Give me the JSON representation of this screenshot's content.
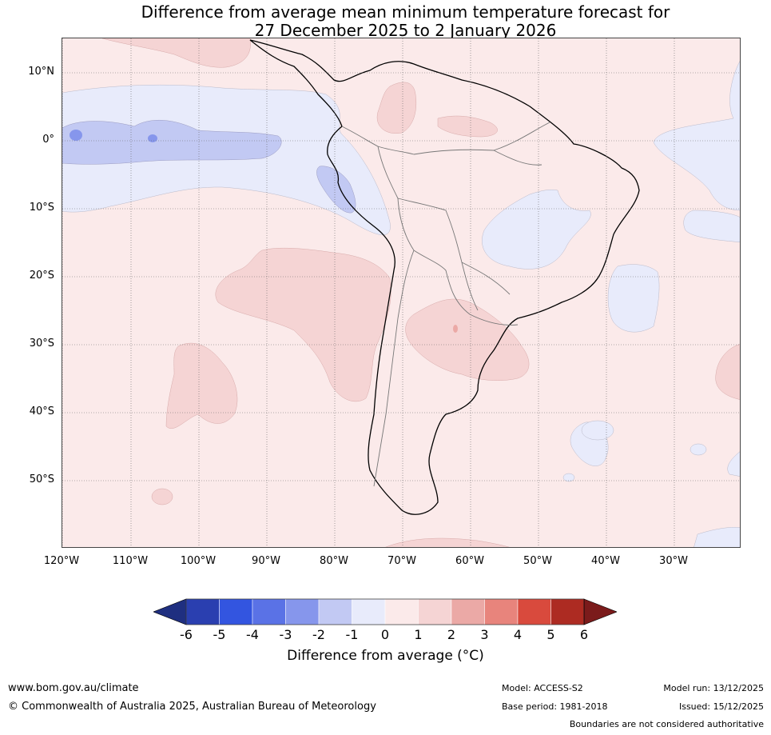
{
  "title": {
    "line1": "Difference from average mean minimum temperature forecast for",
    "line2": "27 December 2025 to 2 January 2026"
  },
  "latitude_labels": [
    "10°N",
    "0°",
    "10°S",
    "20°S",
    "30°S",
    "40°S",
    "50°S"
  ],
  "longitude_labels": [
    "120°W",
    "110°W",
    "100°W",
    "90°W",
    "80°W",
    "70°W",
    "60°W",
    "50°W",
    "40°W",
    "30°W"
  ],
  "colorbar": {
    "ticks": [
      "-6",
      "-5",
      "-4",
      "-3",
      "-2",
      "-1",
      "0",
      "1",
      "2",
      "3",
      "4",
      "5",
      "6"
    ],
    "colors": [
      "#1f2f80",
      "#2a3fb0",
      "#3355e0",
      "#5a72e6",
      "#8696ec",
      "#c2c9f3",
      "#e8ebfb",
      "#fbeaea",
      "#f5d4d4",
      "#eba9a6",
      "#e8847c",
      "#d94a3d",
      "#ad2b22",
      "#7b1b1b"
    ],
    "title": "Difference from average (°C)"
  },
  "footer": {
    "website": "www.bom.gov.au/climate",
    "copyright": "© Commonwealth of Australia 2025, Australian Bureau of Meteorology",
    "model": "Model: ACCESS-S2",
    "base_period": "Base period: 1981-2018",
    "model_run": "Model run: 13/12/2025",
    "issued": "Issued: 15/12/2025",
    "disclaimer": "Boundaries are not considered authoritative"
  }
}
